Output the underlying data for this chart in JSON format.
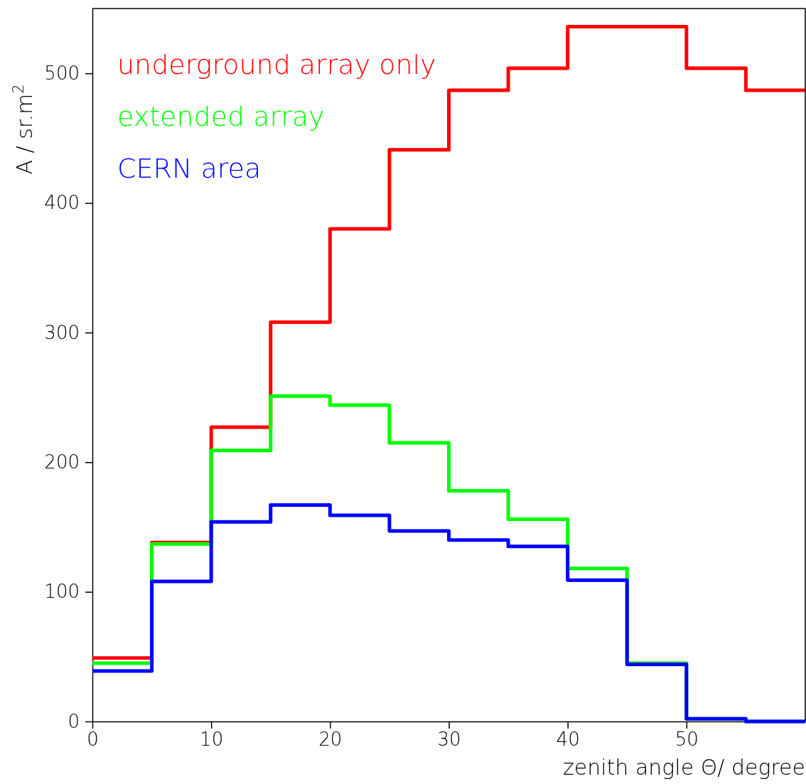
{
  "chart_data": {
    "type": "histogram",
    "xlabel": "zenith angle Θ/ degree",
    "ylabel": "A / sr.m$^{2}$",
    "bins": [
      0,
      5,
      10,
      15,
      20,
      25,
      30,
      35,
      40,
      45,
      50,
      55,
      60
    ],
    "xlim": [
      0,
      60
    ],
    "xticks": [
      0,
      10,
      20,
      30,
      40,
      50
    ],
    "ylim": [
      0,
      550
    ],
    "yticks": [
      0,
      100,
      200,
      300,
      400,
      500
    ],
    "legend": "top left",
    "series": [
      {
        "name": "underground array only",
        "color": "#ff0000",
        "values": [
          49,
          138,
          227,
          308,
          380,
          441,
          487,
          504,
          536,
          536,
          504,
          487
        ]
      },
      {
        "name": "extended array",
        "color": "#00ff00",
        "values": [
          45,
          137,
          209,
          251,
          244,
          215,
          178,
          156,
          118,
          45,
          2,
          0
        ]
      },
      {
        "name": "CERN area",
        "color": "#0000ff",
        "values": [
          39,
          108,
          154,
          167,
          159,
          147,
          140,
          135,
          109,
          44,
          2,
          0
        ]
      }
    ]
  }
}
